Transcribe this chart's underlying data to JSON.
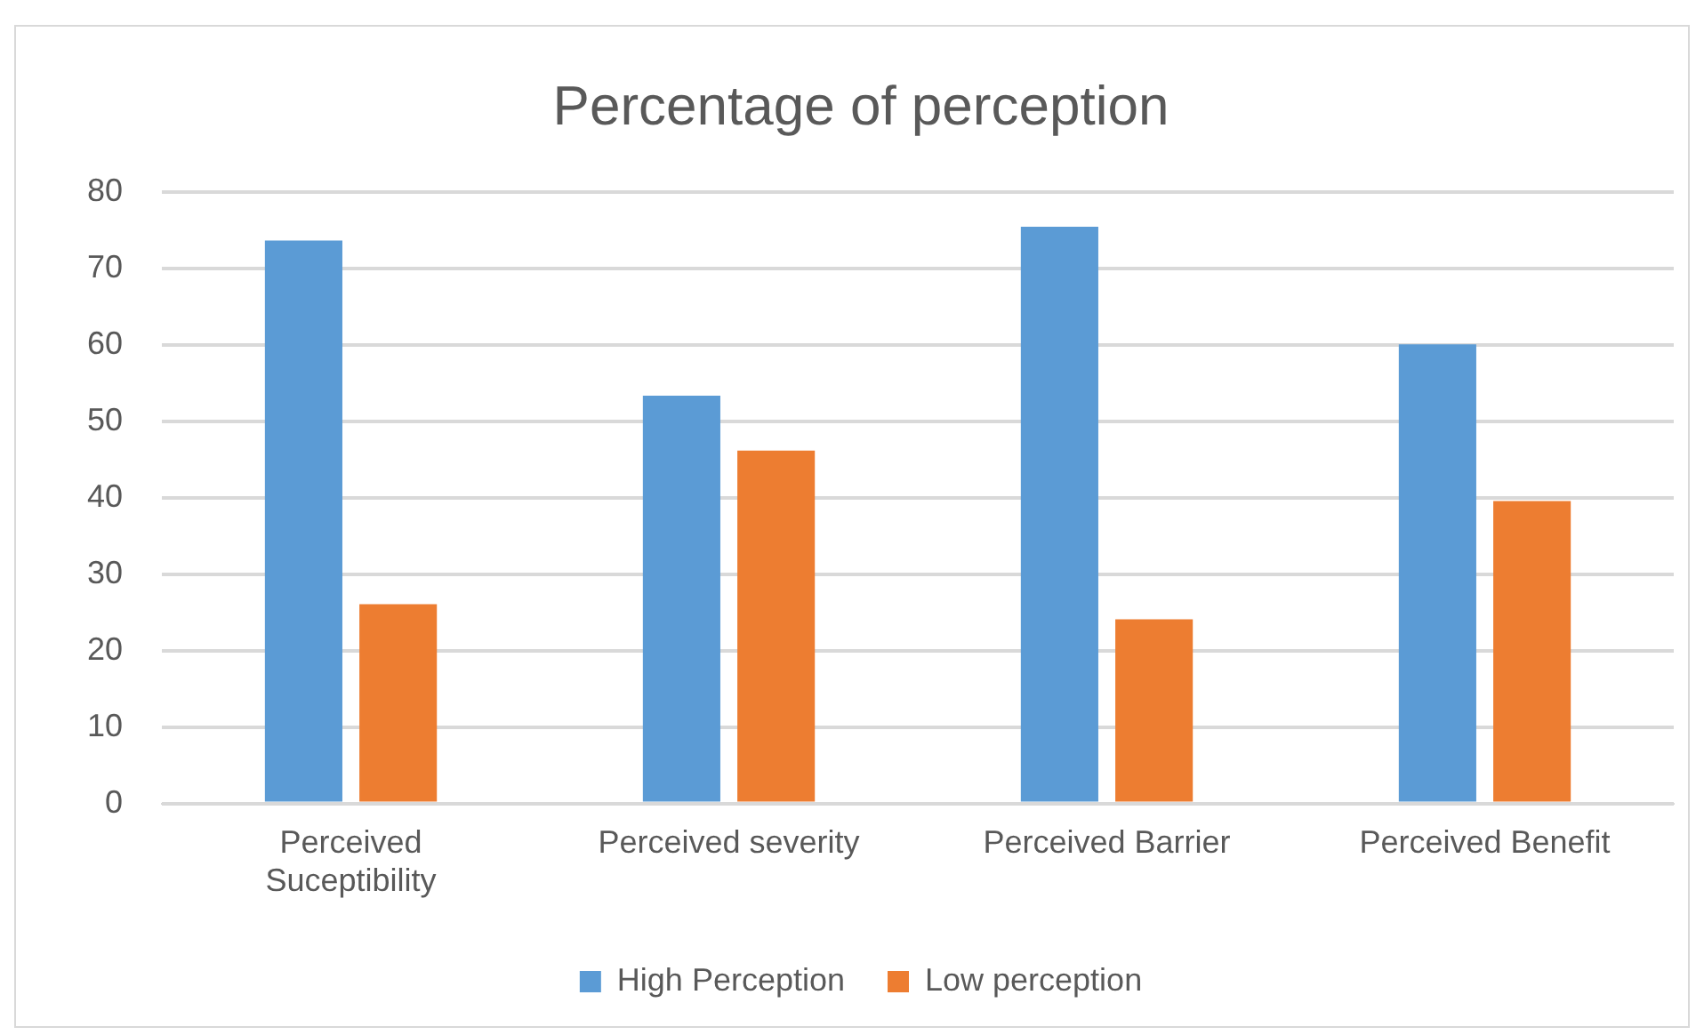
{
  "chart_data": {
    "type": "bar",
    "title": "Percentage of perception",
    "categories": [
      "Perceived Suceptibility",
      "Perceived severity",
      "Perceived Barrier",
      "Perceived Benefit"
    ],
    "series": [
      {
        "name": "High Perception",
        "color": "#5b9bd5",
        "values": [
          73.7,
          53.4,
          75.5,
          60.1
        ]
      },
      {
        "name": "Low perception",
        "color": "#ed7d31",
        "values": [
          26.1,
          46.2,
          24.1,
          39.6
        ]
      }
    ],
    "ylim": [
      0,
      80
    ],
    "yticks": [
      0,
      10,
      20,
      30,
      40,
      50,
      60,
      70,
      80
    ],
    "grid": "y",
    "legend": "bottom"
  }
}
